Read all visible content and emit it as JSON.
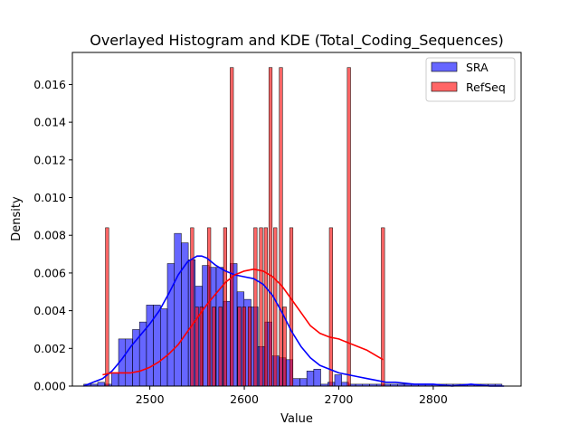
{
  "chart_data": {
    "type": "bar",
    "title": "Overlayed Histogram and KDE (Total_Coding_Sequences)",
    "xlabel": "Value",
    "ylabel": "Density",
    "xlim": [
      2418,
      2893
    ],
    "ylim": [
      0,
      0.0177
    ],
    "xticks": [
      2500,
      2600,
      2700,
      2800
    ],
    "yticks": [
      0.0,
      0.002,
      0.004,
      0.006,
      0.008,
      0.01,
      0.012,
      0.014,
      0.016
    ],
    "ytick_labels": [
      "0.000",
      "0.002",
      "0.004",
      "0.006",
      "0.008",
      "0.010",
      "0.012",
      "0.014",
      "0.016"
    ],
    "grid": false,
    "legend_position": "top-right",
    "series": [
      {
        "name": "SRA",
        "color": "#0000ff",
        "alpha": 0.6,
        "bin_start": 2430,
        "bin_width": 7.38,
        "densities": [
          0.0001,
          0.0001,
          0.0002,
          0.0001,
          0.0007,
          0.0025,
          0.0025,
          0.003,
          0.0034,
          0.0043,
          0.0043,
          0.0041,
          0.0065,
          0.0081,
          0.0076,
          0.0067,
          0.0053,
          0.0064,
          0.0063,
          0.0063,
          0.0045,
          0.0065,
          0.005,
          0.0046,
          0.0042,
          0.0021,
          0.0034,
          0.0016,
          0.0015,
          0.0014,
          0.0004,
          0.0004,
          0.0008,
          0.0009,
          0.0001,
          0.0002,
          0.0006,
          0.0002,
          0.0001,
          0.0001,
          0.0001,
          0.0001,
          0.0001,
          0.0001,
          0.0001,
          0.0001,
          0.0001,
          0.0001,
          0.0001,
          0.0001,
          0.0001,
          0.0001,
          0.0001,
          0.0001,
          0.0001,
          0.0001,
          0.0001,
          0.0001,
          0.0001,
          0.0001
        ],
        "kde": {
          "x": [
            2430,
            2440,
            2450,
            2460,
            2470,
            2480,
            2490,
            2500,
            2510,
            2520,
            2530,
            2540,
            2550,
            2555,
            2560,
            2570,
            2580,
            2590,
            2600,
            2610,
            2620,
            2630,
            2640,
            2650,
            2660,
            2670,
            2680,
            2690,
            2700,
            2710,
            2720,
            2730,
            2740,
            2750,
            2760,
            2780,
            2800,
            2820,
            2840,
            2860,
            2875
          ],
          "y": [
            0.0,
            0.0002,
            0.0004,
            0.0008,
            0.0014,
            0.0021,
            0.0027,
            0.0033,
            0.004,
            0.0049,
            0.0059,
            0.0066,
            0.0069,
            0.0069,
            0.0068,
            0.0064,
            0.0061,
            0.0059,
            0.0058,
            0.0057,
            0.0054,
            0.0048,
            0.0039,
            0.0029,
            0.0021,
            0.0015,
            0.0011,
            0.0009,
            0.0007,
            0.0006,
            0.0005,
            0.0004,
            0.0003,
            0.0002,
            0.0002,
            0.0001,
            0.0001,
            0.0,
            0.0001,
            0.0,
            0.0
          ]
        }
      },
      {
        "name": "RefSeq",
        "color": "#ff0000",
        "alpha": 0.6,
        "bars": [
          {
            "x": 2453,
            "y": 0.0084
          },
          {
            "x": 2543,
            "y": 0.0084
          },
          {
            "x": 2548,
            "y": 0.0042
          },
          {
            "x": 2553,
            "y": 0.0042
          },
          {
            "x": 2561,
            "y": 0.0084
          },
          {
            "x": 2566,
            "y": 0.0042
          },
          {
            "x": 2573,
            "y": 0.0042
          },
          {
            "x": 2578,
            "y": 0.0084
          },
          {
            "x": 2585,
            "y": 0.0169
          },
          {
            "x": 2593,
            "y": 0.0042
          },
          {
            "x": 2598,
            "y": 0.0042
          },
          {
            "x": 2604,
            "y": 0.0042
          },
          {
            "x": 2610,
            "y": 0.0084
          },
          {
            "x": 2616,
            "y": 0.0084
          },
          {
            "x": 2621,
            "y": 0.0084
          },
          {
            "x": 2626,
            "y": 0.0169
          },
          {
            "x": 2631,
            "y": 0.0084
          },
          {
            "x": 2637,
            "y": 0.0169
          },
          {
            "x": 2641,
            "y": 0.0042
          },
          {
            "x": 2648,
            "y": 0.0084
          },
          {
            "x": 2690,
            "y": 0.0084
          },
          {
            "x": 2709,
            "y": 0.0169
          },
          {
            "x": 2745,
            "y": 0.0084
          }
        ],
        "bar_width": 3.5,
        "kde": {
          "x": [
            2450,
            2460,
            2470,
            2480,
            2490,
            2500,
            2510,
            2520,
            2530,
            2540,
            2550,
            2560,
            2570,
            2580,
            2590,
            2600,
            2610,
            2620,
            2630,
            2640,
            2650,
            2660,
            2670,
            2680,
            2690,
            2700,
            2710,
            2720,
            2730,
            2740,
            2747
          ],
          "y": [
            0.0006,
            0.0007,
            0.0007,
            0.0007,
            0.0008,
            0.001,
            0.0013,
            0.0017,
            0.0022,
            0.0029,
            0.0036,
            0.0043,
            0.0049,
            0.0055,
            0.0059,
            0.0061,
            0.0062,
            0.0061,
            0.0058,
            0.0053,
            0.0046,
            0.0039,
            0.0032,
            0.0028,
            0.0026,
            0.0025,
            0.0023,
            0.0021,
            0.0019,
            0.0016,
            0.0014
          ]
        }
      }
    ]
  }
}
